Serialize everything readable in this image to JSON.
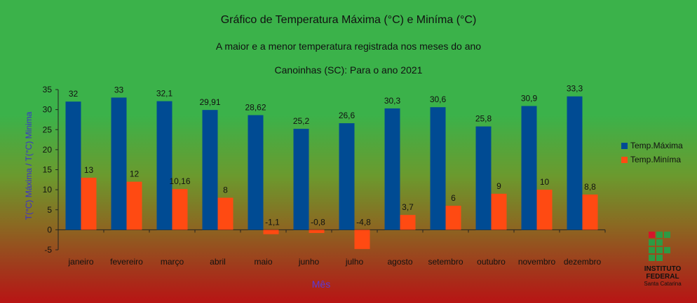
{
  "titles": {
    "line1": "Gráfico de Temperatura Máxima (°C) e Miníma (°C)",
    "line2": "A maior e a menor temperatura registrada  nos meses do ano",
    "line3": "Canoinhas (SC): Para o ano 2021"
  },
  "logo": {
    "line1": "INSTITUTO",
    "line2": "FEDERAL",
    "line3": "Santa Catarina"
  },
  "colors": {
    "max": "#004b93",
    "min": "#ff4a12",
    "logo_red": "#d4162a",
    "logo_green": "#2e9a44"
  },
  "chart_data": {
    "type": "bar",
    "title": "Gráfico de Temperatura Máxima (°C) e Miníma (°C)",
    "xlabel": "Mês",
    "ylabel": "T(°C) Máxima / T(°C) Minima",
    "ylim": [
      -5,
      35
    ],
    "yticks": [
      35,
      30,
      25,
      20,
      15,
      10,
      5,
      0,
      -5
    ],
    "legend_position": "right",
    "categories": [
      "janeiro",
      "fevereiro",
      "março",
      "abril",
      "maio",
      "junho",
      "julho",
      "agosto",
      "setembro",
      "outubro",
      "novembro",
      "dezembro"
    ],
    "series": [
      {
        "name": "Temp.Máxima",
        "values": [
          32,
          33,
          32.1,
          29.91,
          28.62,
          25.2,
          26.6,
          30.3,
          30.6,
          25.8,
          30.9,
          33.3
        ],
        "labels": [
          "32",
          "33",
          "32,1",
          "29,91",
          "28,62",
          "25,2",
          "26,6",
          "30,3",
          "30,6",
          "25,8",
          "30,9",
          "33,3"
        ]
      },
      {
        "name": "Temp.Miníma",
        "values": [
          13,
          12,
          10.16,
          8,
          -1.1,
          -0.8,
          -4.8,
          3.7,
          6,
          9,
          10,
          8.8
        ],
        "labels": [
          "13",
          "12",
          "10,16",
          "8",
          "-1,1",
          "-0,8",
          "-4,8",
          "3,7",
          "6",
          "9",
          "10",
          "8,8"
        ]
      }
    ]
  }
}
